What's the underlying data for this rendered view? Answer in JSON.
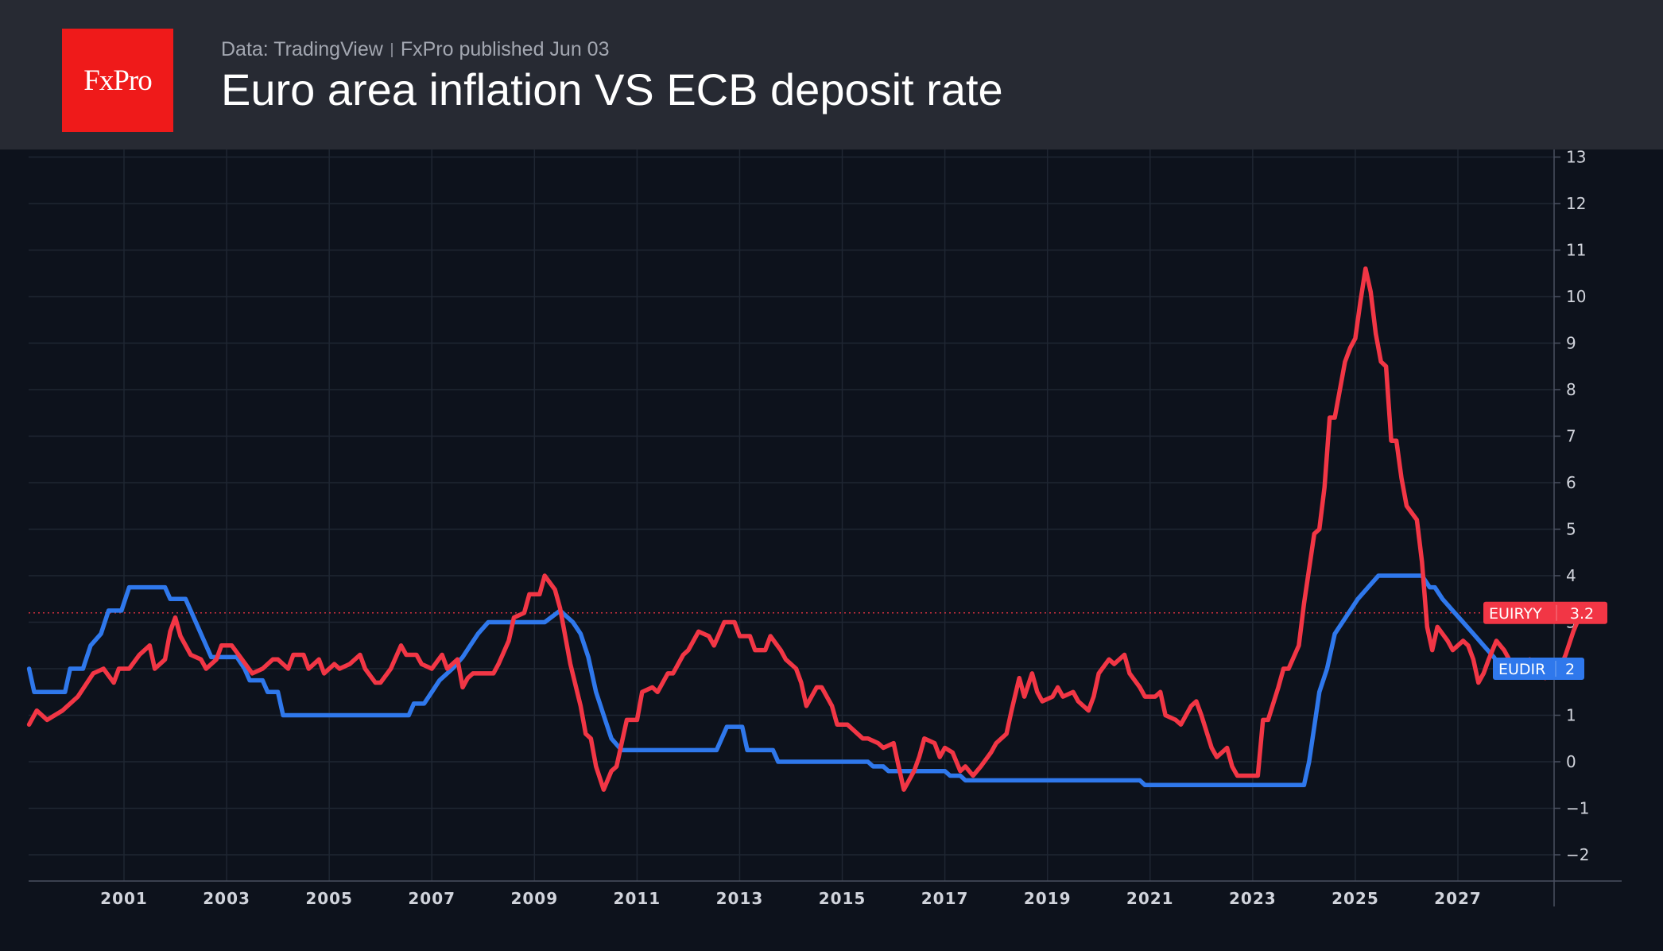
{
  "header": {
    "logo_text": "FxPro",
    "source": "Data: TradingView",
    "published": "FxPro published Jun 03",
    "title": "Euro area inflation VS ECB deposit rate"
  },
  "colors": {
    "background": "#0d121c",
    "header_bg": "#272a33",
    "logo_bg": "#ef1a1a",
    "inflation": "#f23645",
    "deposit_rate": "#2f78ec",
    "grid": "#1f2632",
    "axis_text": "#d1d4dc"
  },
  "chart_data": {
    "type": "line",
    "title": "Euro area inflation VS ECB deposit rate",
    "x_ticks": [
      "2001",
      "2003",
      "2005",
      "2007",
      "2009",
      "2011",
      "2013",
      "2015",
      "2017",
      "2019",
      "2021",
      "2023",
      "2025",
      "2027"
    ],
    "y_ticks": [
      "−2",
      "−1",
      "0",
      "1",
      "2",
      "3",
      "4",
      "5",
      "6",
      "7",
      "8",
      "9",
      "10",
      "11",
      "12",
      "13"
    ],
    "xlim": [
      1999.15,
      2029.5
    ],
    "ylim": [
      -2.55,
      13.25
    ],
    "grid": true,
    "series": [
      {
        "name": "EUIRYY",
        "last_value": "3.2",
        "last_x": 2026.4,
        "last_y": 3.2,
        "points": [
          [
            1999.15,
            0.8
          ],
          [
            1999.3,
            1.1
          ],
          [
            1999.5,
            0.9
          ],
          [
            1999.8,
            1.1
          ],
          [
            2000.1,
            1.4
          ],
          [
            2000.4,
            1.9
          ],
          [
            2000.6,
            2.0
          ],
          [
            2000.8,
            1.7
          ],
          [
            2000.9,
            2.0
          ],
          [
            2001.1,
            2.0
          ],
          [
            2001.3,
            2.3
          ],
          [
            2001.5,
            2.5
          ],
          [
            2001.6,
            2.0
          ],
          [
            2001.8,
            2.2
          ],
          [
            2001.9,
            2.8
          ],
          [
            2002.0,
            3.1
          ],
          [
            2002.1,
            2.7
          ],
          [
            2002.3,
            2.3
          ],
          [
            2002.5,
            2.2
          ],
          [
            2002.6,
            2.0
          ],
          [
            2002.8,
            2.2
          ],
          [
            2002.9,
            2.5
          ],
          [
            2003.1,
            2.5
          ],
          [
            2003.3,
            2.2
          ],
          [
            2003.5,
            1.9
          ],
          [
            2003.7,
            2.0
          ],
          [
            2003.9,
            2.2
          ],
          [
            2004.0,
            2.2
          ],
          [
            2004.2,
            2.0
          ],
          [
            2004.3,
            2.3
          ],
          [
            2004.5,
            2.3
          ],
          [
            2004.6,
            2.0
          ],
          [
            2004.8,
            2.2
          ],
          [
            2004.9,
            1.9
          ],
          [
            2005.1,
            2.1
          ],
          [
            2005.2,
            2.0
          ],
          [
            2005.4,
            2.1
          ],
          [
            2005.6,
            2.3
          ],
          [
            2005.7,
            2.0
          ],
          [
            2005.9,
            1.7
          ],
          [
            2006.0,
            1.7
          ],
          [
            2006.2,
            2.0
          ],
          [
            2006.4,
            2.5
          ],
          [
            2006.5,
            2.3
          ],
          [
            2006.7,
            2.3
          ],
          [
            2006.8,
            2.1
          ],
          [
            2007.0,
            2.0
          ],
          [
            2007.2,
            2.3
          ],
          [
            2007.3,
            2.0
          ],
          [
            2007.5,
            2.2
          ],
          [
            2007.6,
            1.6
          ],
          [
            2007.7,
            1.8
          ],
          [
            2007.8,
            1.9
          ],
          [
            2008.0,
            1.9
          ],
          [
            2008.2,
            1.9
          ],
          [
            2008.3,
            2.1
          ],
          [
            2008.5,
            2.6
          ],
          [
            2008.6,
            3.1
          ],
          [
            2008.8,
            3.2
          ],
          [
            2008.9,
            3.6
          ],
          [
            2009.1,
            3.6
          ],
          [
            2009.2,
            4.0
          ],
          [
            2009.4,
            3.7
          ],
          [
            2009.5,
            3.3
          ],
          [
            2009.7,
            2.1
          ],
          [
            2009.9,
            1.2
          ],
          [
            2010.0,
            0.6
          ],
          [
            2010.1,
            0.5
          ],
          [
            2010.2,
            -0.1
          ],
          [
            2010.35,
            -0.6
          ],
          [
            2010.5,
            -0.2
          ],
          [
            2010.6,
            -0.1
          ],
          [
            2010.8,
            0.9
          ],
          [
            2011.0,
            0.9
          ],
          [
            2011.1,
            1.5
          ],
          [
            2011.3,
            1.6
          ],
          [
            2011.4,
            1.5
          ],
          [
            2011.6,
            1.9
          ],
          [
            2011.7,
            1.9
          ],
          [
            2011.9,
            2.3
          ],
          [
            2012.0,
            2.4
          ],
          [
            2012.2,
            2.8
          ],
          [
            2012.4,
            2.7
          ],
          [
            2012.5,
            2.5
          ],
          [
            2012.7,
            3.0
          ],
          [
            2012.9,
            3.0
          ],
          [
            2013.0,
            2.7
          ],
          [
            2013.2,
            2.7
          ],
          [
            2013.3,
            2.4
          ],
          [
            2013.5,
            2.4
          ],
          [
            2013.6,
            2.7
          ],
          [
            2013.8,
            2.4
          ],
          [
            2013.9,
            2.2
          ],
          [
            2014.1,
            2.0
          ],
          [
            2014.2,
            1.7
          ],
          [
            2014.3,
            1.2
          ],
          [
            2014.5,
            1.6
          ],
          [
            2014.6,
            1.6
          ],
          [
            2014.8,
            1.2
          ],
          [
            2014.9,
            0.8
          ],
          [
            2015.1,
            0.8
          ],
          [
            2015.2,
            0.7
          ],
          [
            2015.4,
            0.5
          ],
          [
            2015.5,
            0.5
          ],
          [
            2015.7,
            0.4
          ],
          [
            2015.8,
            0.3
          ],
          [
            2016.0,
            0.4
          ],
          [
            2016.1,
            -0.1
          ],
          [
            2016.2,
            -0.6
          ],
          [
            2016.4,
            -0.2
          ],
          [
            2016.5,
            0.1
          ],
          [
            2016.6,
            0.5
          ],
          [
            2016.8,
            0.4
          ],
          [
            2016.9,
            0.1
          ],
          [
            2017.0,
            0.3
          ],
          [
            2017.15,
            0.2
          ],
          [
            2017.3,
            -0.2
          ],
          [
            2017.4,
            -0.1
          ],
          [
            2017.55,
            -0.3
          ],
          [
            2017.7,
            -0.1
          ],
          [
            2017.9,
            0.2
          ],
          [
            2018.0,
            0.4
          ],
          [
            2018.2,
            0.6
          ],
          [
            2018.3,
            1.1
          ],
          [
            2018.45,
            1.8
          ],
          [
            2018.55,
            1.4
          ],
          [
            2018.7,
            1.9
          ],
          [
            2018.8,
            1.5
          ],
          [
            2018.9,
            1.3
          ],
          [
            2019.1,
            1.4
          ],
          [
            2019.2,
            1.6
          ],
          [
            2019.3,
            1.4
          ],
          [
            2019.5,
            1.5
          ],
          [
            2019.6,
            1.3
          ],
          [
            2019.8,
            1.1
          ],
          [
            2019.9,
            1.4
          ],
          [
            2020.0,
            1.9
          ],
          [
            2020.2,
            2.2
          ],
          [
            2020.3,
            2.1
          ],
          [
            2020.5,
            2.3
          ],
          [
            2020.6,
            1.9
          ],
          [
            2020.8,
            1.6
          ],
          [
            2020.9,
            1.4
          ],
          [
            2021.1,
            1.4
          ],
          [
            2021.2,
            1.5
          ],
          [
            2021.3,
            1.0
          ],
          [
            2021.5,
            0.9
          ],
          [
            2021.6,
            0.8
          ],
          [
            2021.8,
            1.2
          ],
          [
            2021.9,
            1.3
          ],
          [
            2022.0,
            1.0
          ],
          [
            2022.2,
            0.3
          ],
          [
            2022.3,
            0.1
          ],
          [
            2022.5,
            0.3
          ],
          [
            2022.6,
            -0.1
          ],
          [
            2022.7,
            -0.3
          ],
          [
            2022.9,
            -0.3
          ],
          [
            2023.1,
            -0.3
          ],
          [
            2023.2,
            0.9
          ],
          [
            2023.3,
            0.9
          ],
          [
            2023.5,
            1.6
          ],
          [
            2023.6,
            2.0
          ],
          [
            2023.7,
            2.0
          ],
          [
            2023.9,
            2.5
          ],
          [
            2024.0,
            3.4
          ],
          [
            2024.2,
            4.9
          ],
          [
            2024.3,
            5.0
          ],
          [
            2024.4,
            5.9
          ],
          [
            2024.5,
            7.4
          ],
          [
            2024.6,
            7.4
          ],
          [
            2024.8,
            8.6
          ],
          [
            2024.9,
            8.9
          ],
          [
            2025.0,
            9.1
          ],
          [
            2025.1,
            9.9
          ],
          [
            2025.2,
            10.6
          ],
          [
            2025.3,
            10.1
          ],
          [
            2025.4,
            9.2
          ],
          [
            2025.5,
            8.6
          ],
          [
            2025.6,
            8.5
          ],
          [
            2025.7,
            6.9
          ],
          [
            2025.8,
            6.9
          ],
          [
            2025.9,
            6.1
          ],
          [
            2026.0,
            5.5
          ],
          [
            2026.2,
            5.2
          ],
          [
            2026.3,
            4.3
          ],
          [
            2026.4,
            2.9
          ],
          [
            2026.5,
            2.4
          ],
          [
            2026.6,
            2.9
          ],
          [
            2026.8,
            2.6
          ],
          [
            2026.9,
            2.4
          ],
          [
            2027.1,
            2.6
          ],
          [
            2027.2,
            2.5
          ],
          [
            2027.3,
            2.2
          ],
          [
            2027.4,
            1.7
          ],
          [
            2027.5,
            1.9
          ],
          [
            2027.6,
            2.2
          ],
          [
            2027.75,
            2.6
          ],
          [
            2027.9,
            2.4
          ],
          [
            2028.0,
            2.2
          ],
          [
            2028.1,
            1.9
          ],
          [
            2028.25,
            2.1
          ],
          [
            2028.4,
            2.2
          ],
          [
            2028.55,
            1.9
          ],
          [
            2028.7,
            1.8
          ],
          [
            2028.8,
            2.0
          ],
          [
            2028.95,
            1.9
          ],
          [
            2029.1,
            2.3
          ],
          [
            2029.25,
            2.8
          ],
          [
            2029.4,
            3.2
          ]
        ]
      },
      {
        "name": "EUDIR",
        "last_value": "2",
        "last_x": 2026.4,
        "last_y": 2.0,
        "points": [
          [
            1999.15,
            2.0
          ],
          [
            1999.25,
            1.5
          ],
          [
            1999.85,
            1.5
          ],
          [
            1999.95,
            2.0
          ],
          [
            2000.2,
            2.0
          ],
          [
            2000.35,
            2.5
          ],
          [
            2000.55,
            2.75
          ],
          [
            2000.7,
            3.25
          ],
          [
            2000.95,
            3.25
          ],
          [
            2001.1,
            3.75
          ],
          [
            2001.8,
            3.75
          ],
          [
            2001.9,
            3.5
          ],
          [
            2002.2,
            3.5
          ],
          [
            2002.3,
            3.25
          ],
          [
            2002.5,
            2.75
          ],
          [
            2002.7,
            2.25
          ],
          [
            2003.2,
            2.25
          ],
          [
            2003.35,
            2.0
          ],
          [
            2003.45,
            1.75
          ],
          [
            2003.7,
            1.75
          ],
          [
            2003.8,
            1.5
          ],
          [
            2004.0,
            1.5
          ],
          [
            2004.1,
            1.0
          ],
          [
            2006.55,
            1.0
          ],
          [
            2006.65,
            1.25
          ],
          [
            2006.85,
            1.25
          ],
          [
            2007.0,
            1.5
          ],
          [
            2007.15,
            1.75
          ],
          [
            2007.4,
            2.0
          ],
          [
            2007.6,
            2.25
          ],
          [
            2007.75,
            2.5
          ],
          [
            2007.9,
            2.75
          ],
          [
            2008.1,
            3.0
          ],
          [
            2008.3,
            3.0
          ],
          [
            2008.5,
            3.0
          ],
          [
            2009.2,
            3.0
          ],
          [
            2009.5,
            3.25
          ],
          [
            2009.75,
            3.0
          ],
          [
            2009.9,
            2.75
          ],
          [
            2010.05,
            2.25
          ],
          [
            2010.2,
            1.5
          ],
          [
            2010.35,
            1.0
          ],
          [
            2010.5,
            0.5
          ],
          [
            2010.7,
            0.25
          ],
          [
            2011.9,
            0.25
          ],
          [
            2012.55,
            0.25
          ],
          [
            2012.65,
            0.5
          ],
          [
            2012.75,
            0.75
          ],
          [
            2013.05,
            0.75
          ],
          [
            2013.15,
            0.25
          ],
          [
            2013.65,
            0.25
          ],
          [
            2013.75,
            0.0
          ],
          [
            2015.5,
            0.0
          ],
          [
            2015.6,
            -0.1
          ],
          [
            2015.8,
            -0.1
          ],
          [
            2015.9,
            -0.2
          ],
          [
            2016.1,
            -0.2
          ],
          [
            2016.2,
            -0.2
          ],
          [
            2017.0,
            -0.2
          ],
          [
            2017.1,
            -0.3
          ],
          [
            2017.3,
            -0.3
          ],
          [
            2017.4,
            -0.4
          ],
          [
            2020.8,
            -0.4
          ],
          [
            2020.9,
            -0.5
          ],
          [
            2024.0,
            -0.5
          ],
          [
            2024.1,
            0.0
          ],
          [
            2024.2,
            0.75
          ],
          [
            2024.3,
            1.5
          ],
          [
            2024.45,
            2.0
          ],
          [
            2024.6,
            2.75
          ],
          [
            2024.75,
            3.0
          ],
          [
            2024.9,
            3.25
          ],
          [
            2025.05,
            3.5
          ],
          [
            2025.25,
            3.75
          ],
          [
            2025.45,
            4.0
          ],
          [
            2025.8,
            4.0
          ],
          [
            2026.3,
            4.0
          ],
          [
            2026.45,
            3.75
          ],
          [
            2026.55,
            3.75
          ],
          [
            2026.7,
            3.5
          ],
          [
            2026.9,
            3.25
          ],
          [
            2027.1,
            3.0
          ],
          [
            2027.3,
            2.75
          ],
          [
            2027.5,
            2.5
          ],
          [
            2027.7,
            2.25
          ],
          [
            2027.85,
            2.0
          ],
          [
            2028.5,
            2.0
          ],
          [
            2029.4,
            2.0
          ]
        ]
      }
    ]
  }
}
